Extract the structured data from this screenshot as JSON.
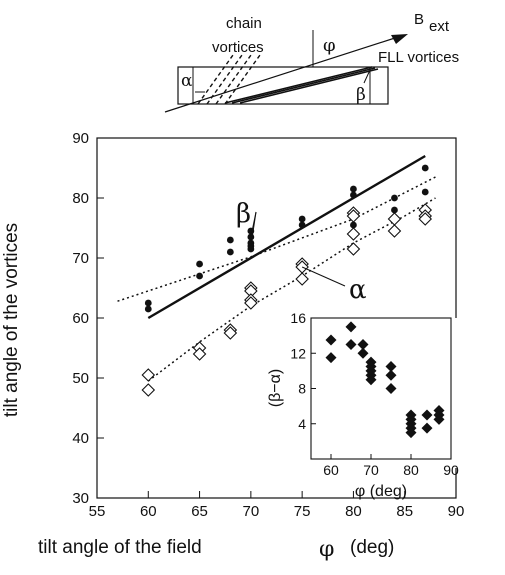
{
  "schematic": {
    "chain_line1": "chain",
    "chain_line2": "vortices",
    "phi": "φ",
    "field_B": "B",
    "field_sub": "ext",
    "fll_label": "FLL  vortices",
    "alpha": "α",
    "beta": "β"
  },
  "chart_data": [
    {
      "type": "scatter",
      "title": "",
      "xlabel": "tilt angle of the field",
      "xlabel_symbol": "φ",
      "xlabel_unit": "(deg)",
      "ylabel": "tilt angle of the vortices",
      "xlim": [
        55,
        90
      ],
      "ylim": [
        30,
        90
      ],
      "xticks": [
        55,
        60,
        65,
        70,
        75,
        80,
        85,
        90
      ],
      "yticks": [
        30,
        40,
        50,
        60,
        70,
        80,
        90
      ],
      "grid": false,
      "series": [
        {
          "name": "β",
          "marker": "filled-circle",
          "points": [
            [
              60,
              62.5
            ],
            [
              60,
              61.5
            ],
            [
              65,
              69
            ],
            [
              65,
              67
            ],
            [
              68,
              73
            ],
            [
              68,
              71
            ],
            [
              70,
              74.5
            ],
            [
              70,
              73.5
            ],
            [
              70,
              72.5
            ],
            [
              70,
              72
            ],
            [
              70,
              71.5
            ],
            [
              75,
              76.5
            ],
            [
              75,
              75.5
            ],
            [
              80,
              81.5
            ],
            [
              80,
              80.5
            ],
            [
              80,
              77.5
            ],
            [
              80,
              75.5
            ],
            [
              84,
              80
            ],
            [
              84,
              78
            ],
            [
              87,
              85
            ],
            [
              87,
              81
            ]
          ]
        },
        {
          "name": "α",
          "marker": "open-diamond",
          "points": [
            [
              60,
              50.5
            ],
            [
              60,
              48
            ],
            [
              65,
              55
            ],
            [
              65,
              54
            ],
            [
              68,
              58
            ],
            [
              68,
              57.5
            ],
            [
              70,
              65
            ],
            [
              70,
              64.5
            ],
            [
              70,
              63
            ],
            [
              70,
              62.5
            ],
            [
              75,
              69
            ],
            [
              75,
              68.5
            ],
            [
              75,
              66.5
            ],
            [
              80,
              77.5
            ],
            [
              80,
              77
            ],
            [
              80,
              74
            ],
            [
              80,
              71.5
            ],
            [
              84,
              76.5
            ],
            [
              84,
              74.5
            ],
            [
              87,
              78
            ],
            [
              87,
              77
            ],
            [
              87,
              76.5
            ]
          ]
        }
      ],
      "lines": [
        {
          "style": "solid",
          "points": [
            [
              60,
              60
            ],
            [
              87,
              87
            ]
          ]
        },
        {
          "style": "dotted",
          "points": [
            [
              57,
              62.8
            ],
            [
              70,
              70.2
            ],
            [
              80,
              76.5
            ],
            [
              88,
              83.5
            ]
          ]
        },
        {
          "style": "dotted",
          "points": [
            [
              60,
              49.5
            ],
            [
              65,
              56
            ],
            [
              70,
              62
            ],
            [
              75,
              67
            ],
            [
              80,
              72.5
            ],
            [
              85,
              77
            ],
            [
              88,
              80
            ]
          ]
        }
      ],
      "annotations": [
        {
          "text": "β",
          "points_to": [
            [
              70,
              73.5
            ],
            [
              70,
              72
            ]
          ]
        },
        {
          "text": "α",
          "points_to": [
            [
              75,
              68.5
            ]
          ]
        }
      ]
    },
    {
      "type": "scatter",
      "title": "",
      "xlabel": "φ (deg)",
      "ylabel": "(β−α)",
      "xlim": [
        55,
        90
      ],
      "ylim": [
        0,
        16
      ],
      "xticks": [
        60,
        70,
        80,
        90
      ],
      "yticks": [
        4,
        8,
        12,
        16
      ],
      "grid": false,
      "series": [
        {
          "name": "",
          "marker": "filled-diamond",
          "points": [
            [
              60,
              13.5
            ],
            [
              60,
              11.5
            ],
            [
              65,
              15
            ],
            [
              65,
              13
            ],
            [
              68,
              13
            ],
            [
              68,
              12
            ],
            [
              70,
              11
            ],
            [
              70,
              10.5
            ],
            [
              70,
              10
            ],
            [
              70,
              9.5
            ],
            [
              70,
              9
            ],
            [
              75,
              10.5
            ],
            [
              75,
              9.5
            ],
            [
              75,
              8
            ],
            [
              80,
              5
            ],
            [
              80,
              4.5
            ],
            [
              80,
              4
            ],
            [
              80,
              3.5
            ],
            [
              80,
              3
            ],
            [
              84,
              5
            ],
            [
              84,
              3.5
            ],
            [
              87,
              5.5
            ],
            [
              87,
              5
            ],
            [
              87,
              4.5
            ]
          ]
        }
      ]
    }
  ]
}
